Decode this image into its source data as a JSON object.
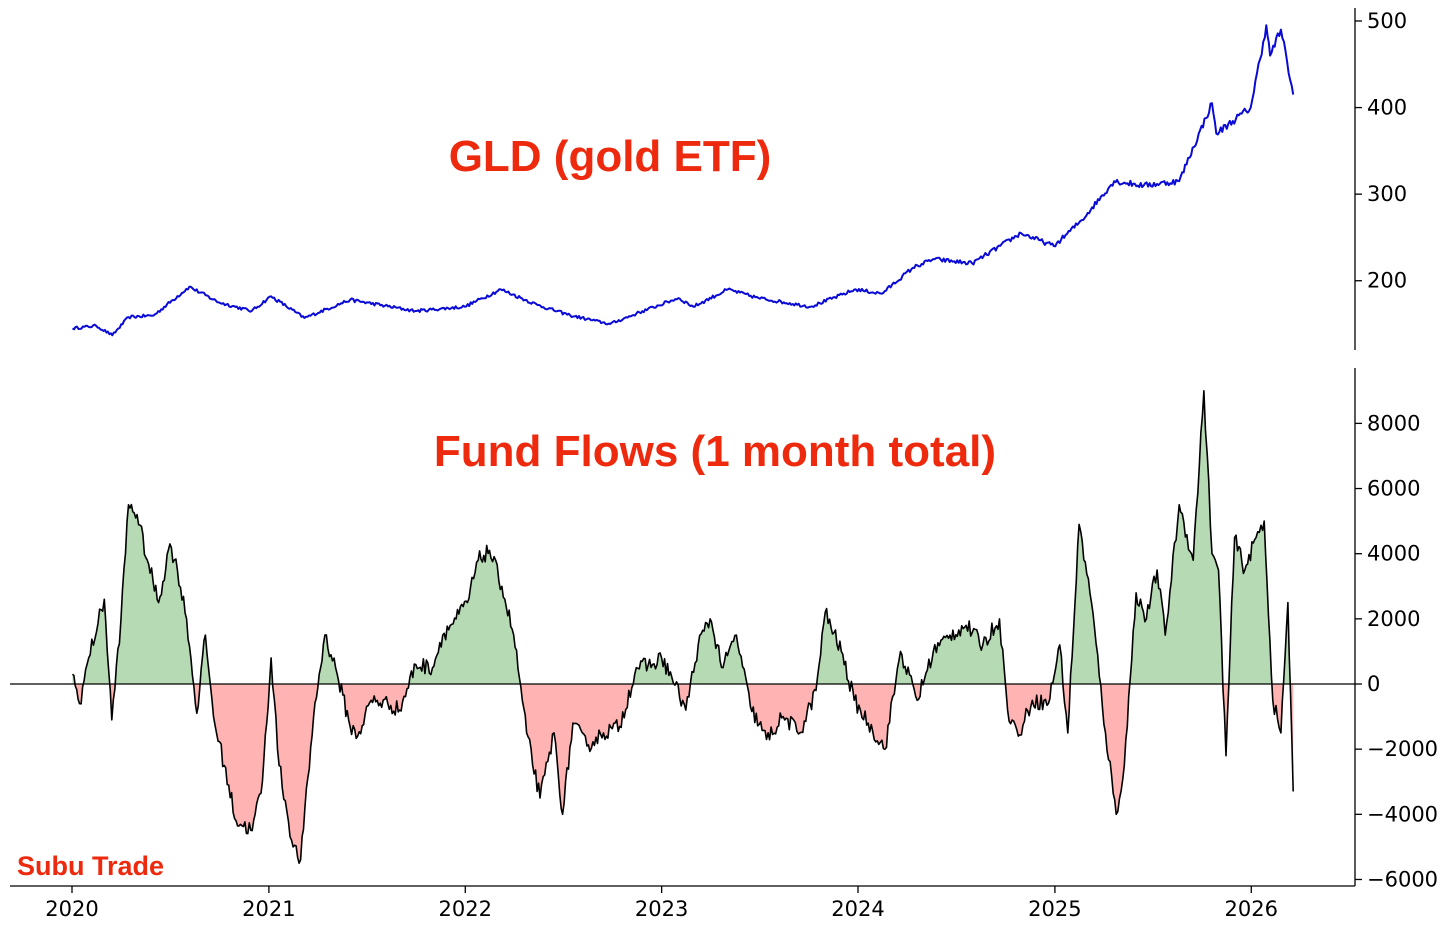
{
  "watermark": "Subu Trade",
  "chart_data": [
    {
      "type": "line",
      "title": "GLD (gold ETF)",
      "xlabel": "",
      "ylabel": "",
      "x_ticks": [
        "2020",
        "2021",
        "2022",
        "2023",
        "2024",
        "2025",
        "2026"
      ],
      "y_ticks": [
        200,
        300,
        400,
        500
      ],
      "ylim": [
        120,
        515
      ],
      "y_axis_side": "right",
      "grid": false,
      "color": "#0a0ad6",
      "series": [
        {
          "x": [
            "2020-01-02",
            "2020-02-15",
            "2020-03-16",
            "2020-04-15",
            "2020-06-01",
            "2020-08-06",
            "2020-09-30",
            "2020-11-30",
            "2021-01-05",
            "2021-03-08",
            "2021-06-01",
            "2021-09-30",
            "2021-12-31",
            "2022-03-08",
            "2022-05-15",
            "2022-07-15",
            "2022-09-27",
            "2022-11-15",
            "2023-02-01",
            "2023-03-01",
            "2023-05-04",
            "2023-06-30",
            "2023-10-05",
            "2023-12-28",
            "2024-02-14",
            "2024-04-12",
            "2024-05-20",
            "2024-07-31",
            "2024-10-30",
            "2024-12-30",
            "2025-02-20",
            "2025-04-21",
            "2025-06-15",
            "2025-08-20",
            "2025-10-20",
            "2025-10-28",
            "2025-12-31",
            "2026-01-29",
            "2026-02-05",
            "2026-02-25",
            "2026-03-20"
          ],
          "values": [
            145,
            148,
            137,
            158,
            160,
            193,
            175,
            165,
            182,
            157,
            178,
            165,
            170,
            190,
            172,
            160,
            150,
            162,
            180,
            170,
            190,
            180,
            170,
            190,
            185,
            215,
            225,
            220,
            255,
            240,
            270,
            315,
            310,
            315,
            405,
            370,
            400,
            495,
            460,
            490,
            415
          ]
        }
      ]
    },
    {
      "type": "area",
      "title": "Fund Flows (1 month total)",
      "xlabel": "",
      "ylabel": "",
      "x_ticks": [
        "2020",
        "2021",
        "2022",
        "2023",
        "2024",
        "2025",
        "2026"
      ],
      "y_ticks": [
        -6000,
        -4000,
        -2000,
        0,
        2000,
        4000,
        6000,
        8000
      ],
      "ylim": [
        -6200,
        9700
      ],
      "y_axis_side": "right",
      "grid": false,
      "positive_color": "#b5dab4",
      "negative_color": "#ffb3b3",
      "line_color": "#000000",
      "series": [
        {
          "x": [
            "2020-01-02",
            "2020-01-15",
            "2020-02-01",
            "2020-03-01",
            "2020-03-15",
            "2020-04-01",
            "2020-04-15",
            "2020-05-01",
            "2020-05-20",
            "2020-06-10",
            "2020-07-01",
            "2020-07-15",
            "2020-08-01",
            "2020-08-20",
            "2020-09-05",
            "2020-09-20",
            "2020-10-10",
            "2020-11-01",
            "2020-12-01",
            "2020-12-20",
            "2021-01-05",
            "2021-01-20",
            "2021-02-15",
            "2021-03-01",
            "2021-03-25",
            "2021-04-15",
            "2021-05-05",
            "2021-06-01",
            "2021-06-15",
            "2021-07-10",
            "2021-08-10",
            "2021-09-01",
            "2021-10-01",
            "2021-11-01",
            "2021-11-20",
            "2021-12-15",
            "2022-01-05",
            "2022-01-25",
            "2022-02-15",
            "2022-03-10",
            "2022-04-01",
            "2022-04-25",
            "2022-05-20",
            "2022-06-15",
            "2022-07-01",
            "2022-07-20",
            "2022-08-15",
            "2022-09-15",
            "2022-10-15",
            "2022-11-15",
            "2022-12-15",
            "2023-01-01",
            "2023-01-20",
            "2023-02-15",
            "2023-03-10",
            "2023-04-01",
            "2023-04-25",
            "2023-05-20",
            "2023-06-15",
            "2023-07-15",
            "2023-08-15",
            "2023-09-15",
            "2023-10-15",
            "2023-11-01",
            "2023-12-01",
            "2023-12-25",
            "2024-01-20",
            "2024-02-20",
            "2024-03-20",
            "2024-04-20",
            "2024-05-20",
            "2024-06-20",
            "2024-07-20",
            "2024-08-20",
            "2024-09-20",
            "2024-10-05",
            "2024-10-25",
            "2024-11-20",
            "2024-12-20",
            "2025-01-10",
            "2025-01-25",
            "2025-02-15",
            "2025-03-10",
            "2025-04-05",
            "2025-04-25",
            "2025-05-10",
            "2025-06-01",
            "2025-06-20",
            "2025-07-10",
            "2025-07-25",
            "2025-08-20",
            "2025-09-15",
            "2025-10-05",
            "2025-10-20",
            "2025-11-01",
            "2025-11-15",
            "2025-12-01",
            "2025-12-20",
            "2026-01-10",
            "2026-01-25",
            "2026-02-10",
            "2026-02-25",
            "2026-03-10",
            "2026-03-20"
          ],
          "values": [
            300,
            -600,
            800,
            2600,
            -1100,
            2000,
            5500,
            5200,
            3800,
            2500,
            4300,
            3500,
            2000,
            -900,
            1500,
            -1000,
            -2500,
            -4200,
            -4500,
            -3000,
            800,
            -2500,
            -5000,
            -5400,
            -1000,
            1500,
            500,
            -1300,
            -1600,
            -500,
            -600,
            -800,
            600,
            500,
            1500,
            2000,
            2500,
            3800,
            4100,
            3000,
            1500,
            -1500,
            -3500,
            -1500,
            -4000,
            -1200,
            -1900,
            -1500,
            -1300,
            500,
            600,
            800,
            200,
            -800,
            1200,
            2000,
            500,
            1500,
            -700,
            -1700,
            -1000,
            -1500,
            -200,
            2200,
            1000,
            -500,
            -1200,
            -2000,
            1000,
            -500,
            1000,
            1500,
            1800,
            1200,
            2000,
            -800,
            -1600,
            -500,
            -600,
            1200,
            -1500,
            4900,
            2500,
            -1500,
            -4000,
            -2500,
            2800,
            2000,
            3500,
            1500,
            5500,
            3800,
            9000,
            4000,
            3500,
            -2200,
            4500,
            3500,
            4500,
            5000,
            -500,
            -1500,
            2500,
            -3300
          ]
        }
      ]
    }
  ]
}
